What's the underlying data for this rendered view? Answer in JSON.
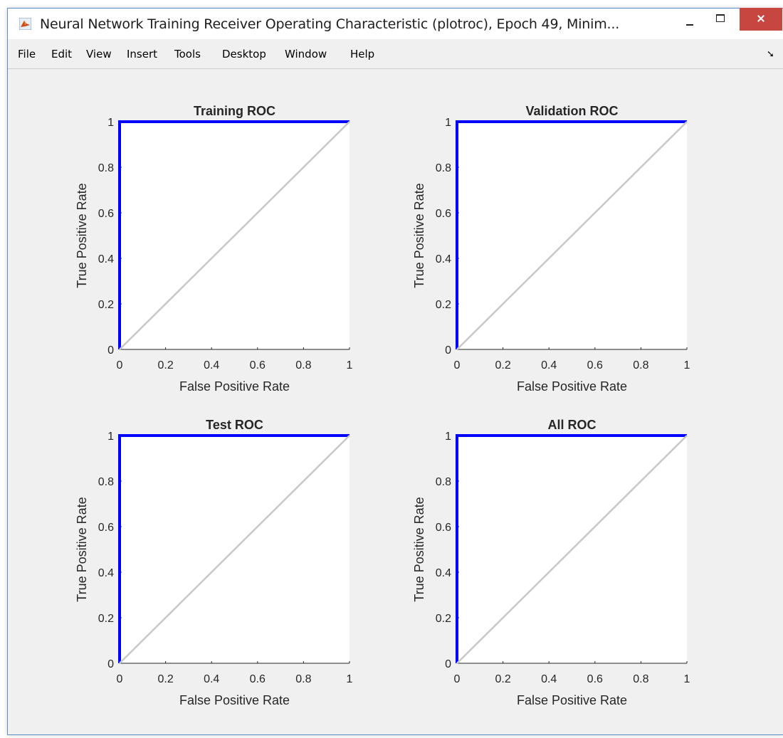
{
  "window": {
    "title": "Neural Network Training Receiver Operating Characteristic (plotroc), Epoch 49, Minim...",
    "icon": "matlab-icon",
    "controls": [
      "minimize-icon",
      "maximize-icon",
      "close-icon"
    ]
  },
  "menu": {
    "items": [
      "File",
      "Edit",
      "View",
      "Insert",
      "Tools",
      "Desktop",
      "Window",
      "Help"
    ],
    "dock_icon": "dock-arrow-icon",
    "dock_glyph": "➘"
  },
  "colors": {
    "roc_line": "#0000ff",
    "diagonal": "#c8c8c8",
    "axes_bg": "#ffffff",
    "figure_bg": "#f0f0f0",
    "close_button": "#c7463f"
  },
  "chart_data": [
    {
      "type": "line",
      "title": "Training ROC",
      "xlabel": "False Positive Rate",
      "ylabel": "True Positive Rate",
      "xlim": [
        0,
        1
      ],
      "ylim": [
        0,
        1
      ],
      "xticks": [
        "0",
        "0.2",
        "0.4",
        "0.6",
        "0.8",
        "1"
      ],
      "yticks": [
        "0",
        "0.2",
        "0.4",
        "0.6",
        "0.8",
        "1"
      ],
      "grid": false,
      "series": [
        {
          "role": "roc",
          "x": [
            0,
            0,
            1
          ],
          "y": [
            0,
            1,
            1
          ]
        },
        {
          "role": "diagonal",
          "x": [
            0,
            1
          ],
          "y": [
            0,
            1
          ]
        }
      ]
    },
    {
      "type": "line",
      "title": "Validation ROC",
      "xlabel": "False Positive Rate",
      "ylabel": "True Positive Rate",
      "xlim": [
        0,
        1
      ],
      "ylim": [
        0,
        1
      ],
      "xticks": [
        "0",
        "0.2",
        "0.4",
        "0.6",
        "0.8",
        "1"
      ],
      "yticks": [
        "0",
        "0.2",
        "0.4",
        "0.6",
        "0.8",
        "1"
      ],
      "grid": false,
      "series": [
        {
          "role": "roc",
          "x": [
            0,
            0,
            1
          ],
          "y": [
            0,
            1,
            1
          ]
        },
        {
          "role": "diagonal",
          "x": [
            0,
            1
          ],
          "y": [
            0,
            1
          ]
        }
      ]
    },
    {
      "type": "line",
      "title": "Test ROC",
      "xlabel": "False Positive Rate",
      "ylabel": "True Positive Rate",
      "xlim": [
        0,
        1
      ],
      "ylim": [
        0,
        1
      ],
      "xticks": [
        "0",
        "0.2",
        "0.4",
        "0.6",
        "0.8",
        "1"
      ],
      "yticks": [
        "0",
        "0.2",
        "0.4",
        "0.6",
        "0.8",
        "1"
      ],
      "grid": false,
      "series": [
        {
          "role": "roc",
          "x": [
            0,
            0,
            1
          ],
          "y": [
            0,
            1,
            1
          ]
        },
        {
          "role": "diagonal",
          "x": [
            0,
            1
          ],
          "y": [
            0,
            1
          ]
        }
      ]
    },
    {
      "type": "line",
      "title": "All ROC",
      "xlabel": "False Positive Rate",
      "ylabel": "True Positive Rate",
      "xlim": [
        0,
        1
      ],
      "ylim": [
        0,
        1
      ],
      "xticks": [
        "0",
        "0.2",
        "0.4",
        "0.6",
        "0.8",
        "1"
      ],
      "yticks": [
        "0",
        "0.2",
        "0.4",
        "0.6",
        "0.8",
        "1"
      ],
      "grid": false,
      "series": [
        {
          "role": "roc",
          "x": [
            0,
            0,
            1
          ],
          "y": [
            0,
            1,
            1
          ]
        },
        {
          "role": "diagonal",
          "x": [
            0,
            1
          ],
          "y": [
            0,
            1
          ]
        }
      ]
    }
  ]
}
